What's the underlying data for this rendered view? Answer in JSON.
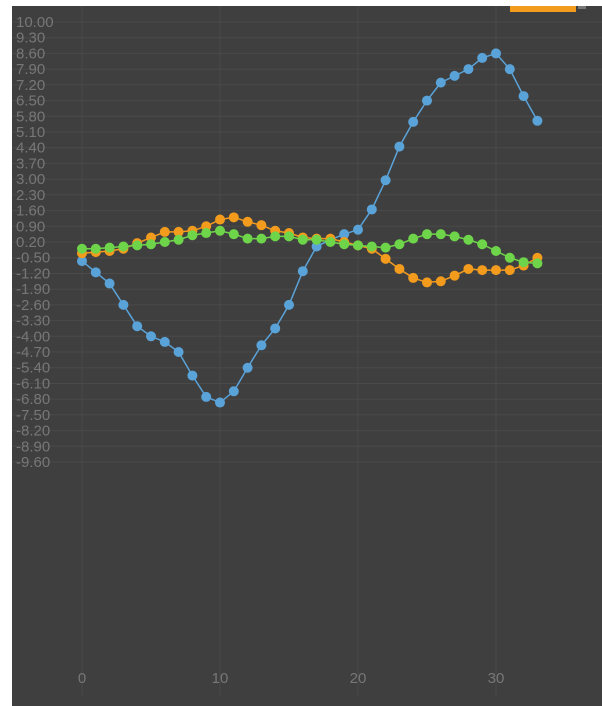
{
  "chart_data": {
    "type": "line",
    "title": "",
    "xlabel": "",
    "ylabel": "",
    "xlim": [
      -3,
      38
    ],
    "ylim": [
      -11,
      10
    ],
    "grid": true,
    "legend": "top-right",
    "x": [
      0,
      1,
      2,
      3,
      4,
      5,
      6,
      7,
      8,
      9,
      10,
      11,
      12,
      13,
      14,
      15,
      16,
      17,
      18,
      19,
      20,
      21,
      22,
      23,
      24,
      25,
      26,
      27,
      28,
      29,
      30,
      31,
      32,
      33
    ],
    "x_ticks": [
      "0",
      "10",
      "20",
      "30"
    ],
    "x_tick_values": [
      0,
      10,
      20,
      30
    ],
    "y_ticks": [
      "10.00",
      "9.30",
      "8.60",
      "7.90",
      "7.20",
      "6.50",
      "5.80",
      "5.10",
      "4.40",
      "3.70",
      "3.00",
      "2.30",
      "1.60",
      "0.90",
      "0.20",
      "-0.50",
      "-1.20",
      "-1.90",
      "-2.60",
      "-3.30",
      "-4.00",
      "-4.70",
      "-5.40",
      "-6.10",
      "-6.80",
      "-7.50",
      "-8.20",
      "-8.90",
      "-9.60"
    ],
    "y_tick_values": [
      10.0,
      9.3,
      8.6,
      7.9,
      7.2,
      6.5,
      5.8,
      5.1,
      4.4,
      3.7,
      3.0,
      2.3,
      1.6,
      0.9,
      0.2,
      -0.5,
      -1.2,
      -1.9,
      -2.6,
      -3.3,
      -4.0,
      -4.7,
      -5.4,
      -6.1,
      -6.8,
      -7.5,
      -8.2,
      -8.9,
      -9.6
    ],
    "series": [
      {
        "color": "#5aa3d9",
        "values": [
          -0.65,
          -1.15,
          -1.65,
          -2.6,
          -3.55,
          -4.0,
          -4.25,
          -4.7,
          -5.75,
          -6.7,
          -6.95,
          -6.45,
          -5.4,
          -4.4,
          -3.65,
          -2.6,
          -1.1,
          0.0,
          0.3,
          0.55,
          0.75,
          1.65,
          2.95,
          4.45,
          5.55,
          6.5,
          7.3,
          7.6,
          7.9,
          8.4,
          8.6,
          7.9,
          6.7,
          5.6
        ]
      },
      {
        "color": "#f29b1d",
        "values": [
          -0.3,
          -0.25,
          -0.2,
          -0.1,
          0.15,
          0.4,
          0.65,
          0.65,
          0.7,
          0.9,
          1.2,
          1.3,
          1.1,
          0.95,
          0.7,
          0.6,
          0.4,
          0.35,
          0.35,
          0.2,
          0.05,
          -0.1,
          -0.55,
          -1.0,
          -1.4,
          -1.6,
          -1.55,
          -1.3,
          -1.0,
          -1.05,
          -1.05,
          -1.05,
          -0.85,
          -0.5
        ]
      },
      {
        "color": "#6ed54a",
        "values": [
          -0.1,
          -0.1,
          -0.05,
          0.0,
          0.05,
          0.1,
          0.2,
          0.3,
          0.5,
          0.6,
          0.7,
          0.55,
          0.35,
          0.35,
          0.45,
          0.45,
          0.3,
          0.3,
          0.2,
          0.1,
          0.05,
          0.0,
          -0.05,
          0.1,
          0.35,
          0.55,
          0.55,
          0.45,
          0.3,
          0.1,
          -0.2,
          -0.5,
          -0.7,
          -0.75
        ]
      }
    ]
  }
}
